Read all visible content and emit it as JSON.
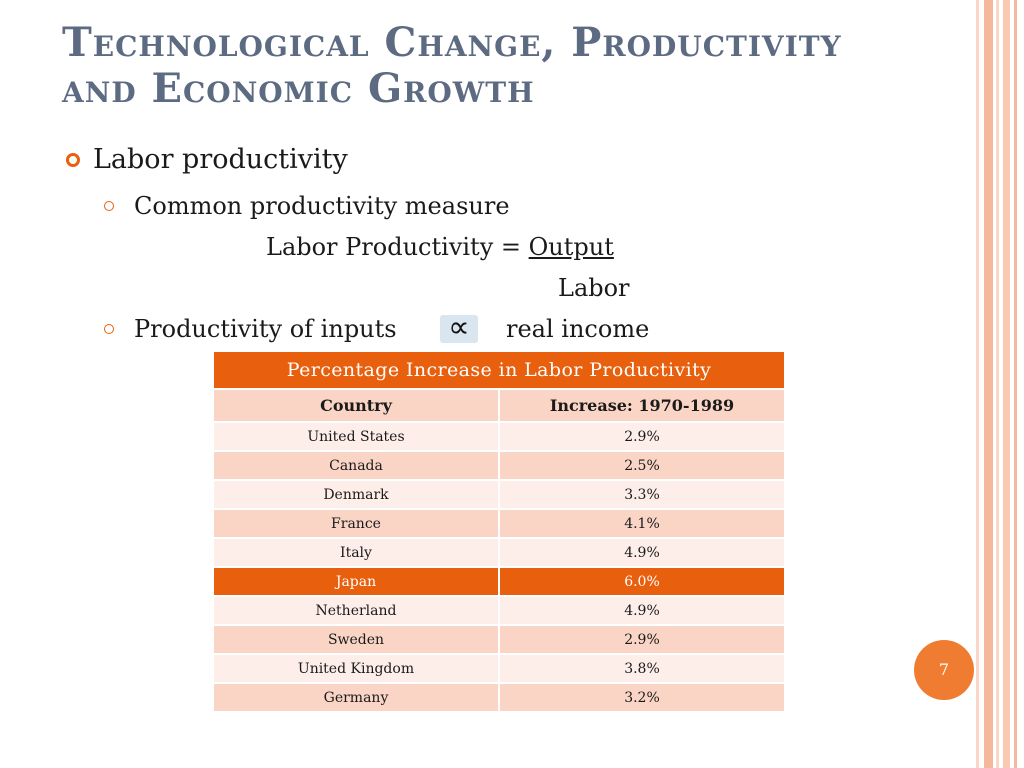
{
  "slide": {
    "title_line1": "Technological Change, Productivity",
    "title_line2": "and Economic Growth",
    "bullet1": "Labor productivity",
    "sub1": "Common productivity measure",
    "formula_lhs": "Labor Productivity = ",
    "formula_numerator": "Output",
    "formula_denominator": "Labor",
    "sub2_left": "Productivity of inputs",
    "proportional_symbol": "∝",
    "sub2_right": "real income",
    "page_number": "7"
  },
  "table": {
    "caption": "Percentage Increase in Labor Productivity",
    "headers": [
      "Country",
      "Increase: 1970-1989"
    ],
    "rows": [
      [
        "United States",
        "2.9%"
      ],
      [
        "Canada",
        "2.5%"
      ],
      [
        "Denmark",
        "3.3%"
      ],
      [
        "France",
        "4.1%"
      ],
      [
        "Italy",
        "4.9%"
      ],
      [
        "Japan",
        "6.0%"
      ],
      [
        "Netherland",
        "4.9%"
      ],
      [
        "Sweden",
        "2.9%"
      ],
      [
        "United Kingdom",
        "3.8%"
      ],
      [
        "Germany",
        "3.2%"
      ]
    ],
    "highlight_row": "Japan"
  },
  "colors": {
    "accent": "#e85f0e",
    "title": "#5c6b82",
    "row_light": "#fdeeea",
    "row_dark": "#fad5c6",
    "stripe": "#f6b89a"
  }
}
